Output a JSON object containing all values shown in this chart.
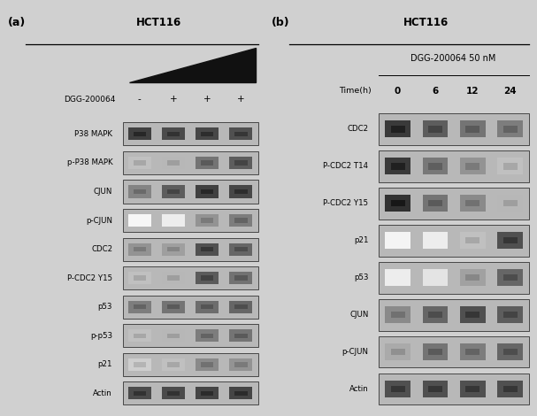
{
  "panel_a": {
    "title": "HCT116",
    "label": "(a)",
    "compound_label": "DGG-200064",
    "col_labels": [
      "-",
      "+",
      "+",
      "+"
    ],
    "rows": [
      "P38 MAPK",
      "p-P38 MAPK",
      "CJUN",
      "p-CJUN",
      "CDC2",
      "P-CDC2 Y15",
      "p53",
      "p-p53",
      "p21",
      "Actin"
    ],
    "band_intensities": {
      "P38 MAPK": [
        0.85,
        0.8,
        0.82,
        0.78
      ],
      "p-P38 MAPK": [
        0.28,
        0.32,
        0.62,
        0.72
      ],
      "CJUN": [
        0.55,
        0.72,
        0.85,
        0.82
      ],
      "p-CJUN": [
        0.04,
        0.08,
        0.48,
        0.58
      ],
      "CDC2": [
        0.48,
        0.43,
        0.78,
        0.68
      ],
      "P-CDC2 Y15": [
        0.28,
        0.32,
        0.73,
        0.63
      ],
      "p53": [
        0.58,
        0.62,
        0.65,
        0.68
      ],
      "p-p53": [
        0.28,
        0.32,
        0.58,
        0.62
      ],
      "p21": [
        0.22,
        0.28,
        0.52,
        0.48
      ],
      "Actin": [
        0.8,
        0.8,
        0.83,
        0.83
      ]
    }
  },
  "panel_b": {
    "title": "HCT116",
    "label": "(b)",
    "compound_header": "DGG-200064 50 nM",
    "time_label": "Time(h)",
    "col_labels": [
      "0",
      "6",
      "12",
      "24"
    ],
    "rows": [
      "CDC2",
      "P-CDC2 T14",
      "P-CDC2 Y15",
      "p21",
      "p53",
      "CJUN",
      "p-CJUN",
      "Actin"
    ],
    "band_intensities": {
      "CDC2": [
        0.88,
        0.72,
        0.62,
        0.58
      ],
      "P-CDC2 T14": [
        0.88,
        0.6,
        0.48,
        0.28
      ],
      "P-CDC2 Y15": [
        0.92,
        0.62,
        0.52,
        0.32
      ],
      "p21": [
        0.05,
        0.08,
        0.28,
        0.78
      ],
      "p53": [
        0.08,
        0.12,
        0.42,
        0.68
      ],
      "CJUN": [
        0.52,
        0.68,
        0.78,
        0.72
      ],
      "p-CJUN": [
        0.38,
        0.62,
        0.58,
        0.68
      ],
      "Actin": [
        0.78,
        0.78,
        0.78,
        0.78
      ]
    }
  },
  "fig_bg": "#d0d0d0",
  "panel_bg": "#e2e2e2",
  "box_bg": "#b8b8b8",
  "box_edge": "#333333"
}
